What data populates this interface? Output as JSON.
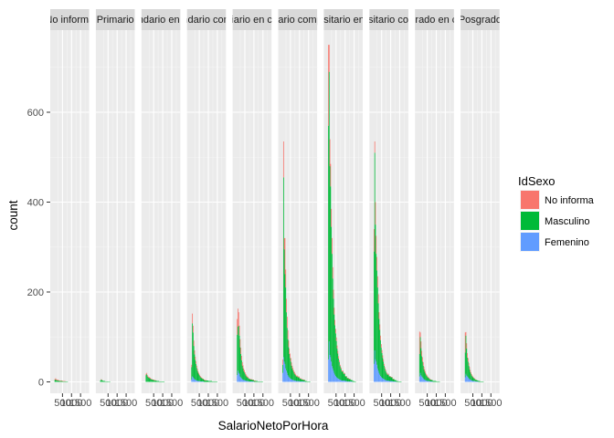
{
  "chart_data": {
    "type": "bar",
    "stacked": true,
    "faceted": true,
    "xlabel": "SalarioNetoPorHora",
    "ylabel": "count",
    "ylim": [
      0,
      780
    ],
    "yticks": [
      0,
      200,
      400,
      600
    ],
    "xlim": [
      0,
      1800
    ],
    "xtick_labels": [
      "500",
      "1000",
      "1500"
    ],
    "grid": true,
    "legend": {
      "title": "IdSexo",
      "position": "right",
      "entries": [
        {
          "label": "No informa",
          "color": "#F8766D"
        },
        {
          "label": "Masculino",
          "color": "#00BA38"
        },
        {
          "label": "Femenino",
          "color": "#619CFF"
        }
      ]
    },
    "bin_x": [
      20,
      60,
      100,
      140,
      180,
      220,
      260,
      300,
      340,
      380,
      420,
      460,
      500,
      540,
      580,
      620,
      660,
      700,
      750,
      800,
      900,
      1000,
      1100,
      1200,
      1300,
      1400,
      1500,
      1600,
      1700
    ],
    "facets": [
      {
        "label": "No informa",
        "femenino": [
          0,
          0,
          0,
          0,
          0,
          0,
          0,
          0,
          0,
          0,
          0,
          0,
          0,
          0,
          0,
          0,
          0,
          0,
          0,
          0,
          0,
          0,
          0,
          0,
          0,
          0,
          0,
          0,
          0
        ],
        "masculino": [
          0,
          4,
          5,
          4,
          3,
          3,
          3,
          2,
          2,
          2,
          2,
          2,
          1,
          1,
          1,
          1,
          1,
          1,
          1,
          0,
          0,
          0,
          0,
          0,
          0,
          0,
          0,
          0,
          0
        ],
        "noinforma": [
          0,
          2,
          3,
          2,
          2,
          2,
          1,
          1,
          1,
          1,
          1,
          1,
          1,
          1,
          1,
          1,
          0,
          0,
          0,
          0,
          0,
          0,
          0,
          0,
          0,
          0,
          0,
          0,
          0
        ]
      },
      {
        "label": "Primario",
        "femenino": [
          0,
          0,
          0,
          0,
          0,
          0,
          0,
          0,
          0,
          0,
          0,
          0,
          0,
          0,
          0,
          0,
          0,
          0,
          0,
          0,
          0,
          0,
          0,
          0,
          0,
          0,
          0,
          0,
          0
        ],
        "masculino": [
          0,
          3,
          5,
          4,
          3,
          2,
          2,
          2,
          1,
          1,
          1,
          1,
          1,
          1,
          1,
          0,
          0,
          0,
          0,
          0,
          0,
          0,
          0,
          0,
          0,
          0,
          0,
          0,
          0
        ],
        "noinforma": [
          0,
          0,
          1,
          1,
          0,
          0,
          0,
          0,
          0,
          0,
          0,
          0,
          0,
          0,
          0,
          0,
          0,
          0,
          0,
          0,
          0,
          0,
          0,
          0,
          0,
          0,
          0,
          0,
          0
        ]
      },
      {
        "label": "Secundario en curso",
        "femenino": [
          0,
          0,
          0,
          0,
          0,
          0,
          0,
          0,
          0,
          0,
          0,
          0,
          0,
          0,
          0,
          0,
          0,
          0,
          0,
          0,
          0,
          0,
          0,
          0,
          0,
          0,
          0,
          0,
          0
        ],
        "masculino": [
          0,
          15,
          17,
          12,
          10,
          9,
          8,
          7,
          6,
          5,
          5,
          4,
          4,
          3,
          3,
          3,
          2,
          2,
          2,
          1,
          1,
          1,
          0,
          0,
          0,
          0,
          0,
          0,
          0
        ],
        "noinforma": [
          0,
          3,
          3,
          3,
          2,
          2,
          2,
          2,
          1,
          1,
          1,
          1,
          1,
          1,
          1,
          0,
          0,
          0,
          0,
          0,
          0,
          0,
          0,
          0,
          0,
          0,
          0,
          0,
          0
        ]
      },
      {
        "label": "Secundario completo",
        "femenino": [
          0,
          5,
          12,
          10,
          8,
          6,
          5,
          4,
          3,
          3,
          2,
          2,
          2,
          1,
          1,
          1,
          1,
          1,
          0,
          0,
          0,
          0,
          0,
          0,
          0,
          0,
          0,
          0,
          0
        ],
        "masculino": [
          0,
          28,
          118,
          100,
          72,
          55,
          44,
          36,
          28,
          22,
          18,
          15,
          12,
          10,
          8,
          7,
          6,
          5,
          4,
          3,
          3,
          2,
          2,
          1,
          1,
          1,
          0,
          0,
          0
        ],
        "noinforma": [
          0,
          5,
          22,
          15,
          12,
          9,
          7,
          6,
          5,
          4,
          3,
          3,
          2,
          2,
          2,
          1,
          1,
          1,
          1,
          1,
          0,
          0,
          0,
          0,
          0,
          0,
          0,
          0,
          0
        ]
      },
      {
        "label": "Terciario en curso",
        "femenino": [
          0,
          15,
          25,
          20,
          18,
          12,
          10,
          8,
          6,
          5,
          4,
          4,
          3,
          3,
          2,
          2,
          2,
          1,
          1,
          1,
          1,
          0,
          0,
          0,
          0,
          0,
          0,
          0,
          0
        ],
        "masculino": [
          0,
          90,
          98,
          105,
          85,
          65,
          52,
          40,
          30,
          25,
          20,
          17,
          14,
          11,
          9,
          8,
          7,
          6,
          5,
          4,
          3,
          2,
          2,
          1,
          1,
          1,
          0,
          0,
          0
        ],
        "noinforma": [
          0,
          35,
          40,
          30,
          22,
          18,
          14,
          10,
          8,
          7,
          6,
          5,
          4,
          3,
          3,
          2,
          2,
          1,
          1,
          1,
          1,
          1,
          0,
          0,
          0,
          0,
          0,
          0,
          0
        ]
      },
      {
        "label": "Terciario completo",
        "femenino": [
          0,
          20,
          55,
          45,
          40,
          30,
          25,
          20,
          15,
          12,
          10,
          8,
          7,
          6,
          5,
          4,
          4,
          3,
          3,
          2,
          2,
          1,
          1,
          1,
          0,
          0,
          0,
          0,
          0
        ],
        "masculino": [
          0,
          18,
          400,
          250,
          200,
          180,
          130,
          100,
          80,
          65,
          52,
          45,
          38,
          30,
          25,
          22,
          18,
          15,
          12,
          10,
          8,
          6,
          4,
          3,
          2,
          1,
          1,
          0,
          0
        ],
        "noinforma": [
          0,
          12,
          80,
          25,
          80,
          40,
          30,
          25,
          20,
          15,
          12,
          10,
          8,
          7,
          6,
          5,
          4,
          4,
          3,
          2,
          2,
          1,
          1,
          1,
          0,
          0,
          0,
          0,
          0
        ]
      },
      {
        "label": "Universitario en curso",
        "femenino": [
          0,
          50,
          90,
          60,
          55,
          45,
          35,
          30,
          25,
          20,
          16,
          13,
          11,
          9,
          8,
          7,
          6,
          5,
          4,
          3,
          3,
          2,
          1,
          1,
          1,
          0,
          0,
          0,
          0
        ],
        "masculino": [
          0,
          520,
          600,
          420,
          380,
          300,
          250,
          200,
          160,
          130,
          110,
          95,
          80,
          65,
          55,
          45,
          38,
          30,
          25,
          20,
          15,
          10,
          7,
          5,
          3,
          2,
          1,
          0,
          0
        ],
        "noinforma": [
          0,
          180,
          60,
          60,
          50,
          40,
          35,
          25,
          20,
          15,
          12,
          10,
          8,
          7,
          6,
          5,
          4,
          3,
          3,
          2,
          2,
          1,
          1,
          1,
          0,
          0,
          0,
          0,
          0
        ]
      },
      {
        "label": "Universitario completo",
        "femenino": [
          0,
          40,
          70,
          50,
          45,
          38,
          30,
          25,
          20,
          16,
          13,
          11,
          9,
          8,
          7,
          6,
          5,
          4,
          3,
          3,
          2,
          2,
          1,
          1,
          0,
          0,
          0,
          0,
          0
        ],
        "masculino": [
          0,
          250,
          440,
          300,
          240,
          210,
          180,
          150,
          120,
          100,
          80,
          65,
          55,
          45,
          38,
          30,
          25,
          20,
          16,
          13,
          10,
          8,
          5,
          3,
          2,
          1,
          1,
          0,
          0
        ],
        "noinforma": [
          0,
          50,
          25,
          50,
          40,
          30,
          25,
          20,
          15,
          12,
          10,
          8,
          7,
          6,
          5,
          4,
          3,
          3,
          2,
          2,
          1,
          1,
          1,
          0,
          0,
          0,
          0,
          0,
          0
        ]
      },
      {
        "label": "Posgrado en curso",
        "femenino": [
          0,
          12,
          20,
          15,
          12,
          10,
          8,
          6,
          5,
          4,
          3,
          3,
          2,
          2,
          2,
          1,
          1,
          1,
          1,
          0,
          0,
          0,
          0,
          0,
          0,
          0,
          0,
          0,
          0
        ],
        "masculino": [
          0,
          50,
          80,
          60,
          45,
          35,
          28,
          22,
          18,
          15,
          12,
          10,
          8,
          7,
          6,
          5,
          4,
          3,
          3,
          2,
          2,
          1,
          1,
          0,
          0,
          0,
          0,
          0,
          0
        ],
        "noinforma": [
          0,
          50,
          10,
          15,
          12,
          10,
          8,
          6,
          5,
          4,
          3,
          3,
          2,
          2,
          1,
          1,
          1,
          1,
          0,
          0,
          0,
          0,
          0,
          0,
          0,
          0,
          0,
          0,
          0
        ]
      },
      {
        "label": "Posgrado",
        "femenino": [
          0,
          10,
          18,
          14,
          12,
          10,
          8,
          6,
          5,
          4,
          3,
          3,
          2,
          2,
          2,
          1,
          1,
          1,
          1,
          0,
          0,
          0,
          0,
          0,
          0,
          0,
          0,
          0,
          0
        ],
        "masculino": [
          0,
          55,
          85,
          60,
          42,
          35,
          28,
          22,
          17,
          14,
          11,
          9,
          7,
          6,
          5,
          4,
          3,
          3,
          2,
          2,
          1,
          1,
          0,
          0,
          0,
          0,
          0,
          0,
          0
        ],
        "noinforma": [
          0,
          45,
          8,
          12,
          10,
          8,
          6,
          5,
          4,
          3,
          3,
          2,
          2,
          1,
          1,
          1,
          1,
          0,
          0,
          0,
          0,
          0,
          0,
          0,
          0,
          0,
          0,
          0,
          0
        ]
      }
    ]
  }
}
